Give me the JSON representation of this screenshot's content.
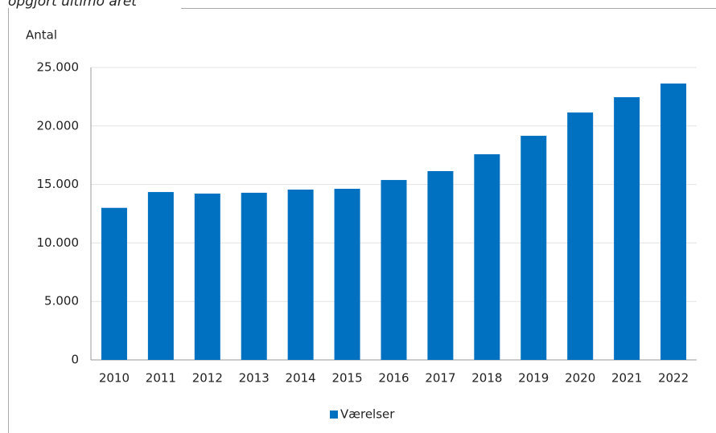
{
  "chart_data": {
    "type": "bar",
    "subtitle": "opgjort ultimo året",
    "y_label": "Antal",
    "categories": [
      "2010",
      "2011",
      "2012",
      "2013",
      "2014",
      "2015",
      "2016",
      "2017",
      "2018",
      "2019",
      "2020",
      "2021",
      "2022"
    ],
    "series": [
      {
        "name": "Værelser",
        "color": "#0070c0",
        "values": [
          13000,
          14350,
          14220,
          14290,
          14560,
          14630,
          15380,
          16140,
          17580,
          19160,
          21150,
          22460,
          23630
        ]
      }
    ],
    "ylim": [
      0,
      25000
    ],
    "yticks": [
      0,
      {
        "value": 5000,
        "label": "5.000"
      },
      {
        "value": 10000,
        "label": "10.000"
      },
      {
        "value": 15000,
        "label": "15.000"
      },
      {
        "value": 20000,
        "label": "20.000"
      },
      {
        "value": 25000,
        "label": "25.000"
      }
    ],
    "grid": true,
    "legend": "bottom"
  }
}
